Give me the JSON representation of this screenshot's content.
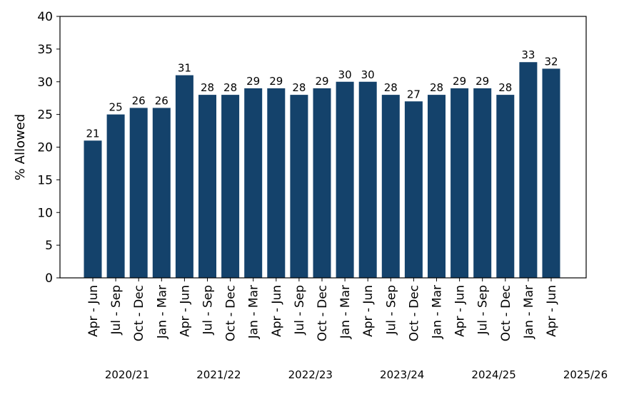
{
  "chart_data": {
    "type": "bar",
    "ylabel": "% Allowed",
    "xlabel": "",
    "ylim": [
      0,
      40
    ],
    "yticks": [
      0,
      5,
      10,
      15,
      20,
      25,
      30,
      35,
      40
    ],
    "grid": false,
    "bar_color": "#14426b",
    "categories": [
      "Apr - Jun",
      "Jul - Sep",
      "Oct - Dec",
      "Jan - Mar",
      "Apr - Jun",
      "Jul - Sep",
      "Oct - Dec",
      "Jan - Mar",
      "Apr - Jun",
      "Jul - Sep",
      "Oct - Dec",
      "Jan - Mar",
      "Apr - Jun",
      "Jul - Sep",
      "Oct - Dec",
      "Jan - Mar",
      "Apr - Jun",
      "Jul - Sep",
      "Oct - Dec",
      "Jan - Mar",
      "Apr - Jun"
    ],
    "values": [
      21,
      25,
      26,
      26,
      31,
      28,
      28,
      29,
      29,
      28,
      29,
      30,
      30,
      28,
      27,
      28,
      29,
      29,
      28,
      33,
      32
    ],
    "year_groups": [
      {
        "label": "2020/21",
        "start_index": 0
      },
      {
        "label": "2021/22",
        "start_index": 4
      },
      {
        "label": "2022/23",
        "start_index": 8
      },
      {
        "label": "2023/24",
        "start_index": 12
      },
      {
        "label": "2024/25",
        "start_index": 16
      },
      {
        "label": "2025/26",
        "start_index": 20
      }
    ]
  }
}
